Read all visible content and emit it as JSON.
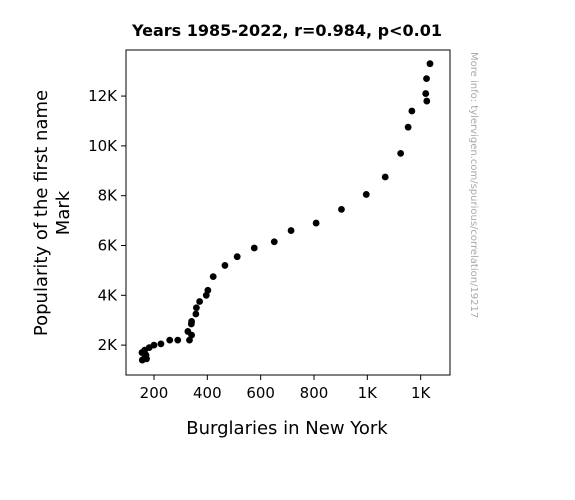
{
  "chart_data": {
    "type": "scatter",
    "title": "Years 1985-2022, r=0.984, p<0.01",
    "xlabel": "Burglaries in New York",
    "ylabel_lines": [
      "Popularity of the first name",
      "Mark"
    ],
    "watermark": "More info: tylervigen.com/spurious/correlation/19217",
    "xlim": [
      95,
      1310
    ],
    "ylim": [
      800,
      13850
    ],
    "x_ticks": [
      {
        "value": 200,
        "label": "200"
      },
      {
        "value": 400,
        "label": "400"
      },
      {
        "value": 600,
        "label": "600"
      },
      {
        "value": 800,
        "label": "800"
      },
      {
        "value": 1000,
        "label": "1K"
      },
      {
        "value": 1200,
        "label": "1K"
      }
    ],
    "y_ticks": [
      {
        "value": 2000,
        "label": "2K"
      },
      {
        "value": 4000,
        "label": "4K"
      },
      {
        "value": 6000,
        "label": "6K"
      },
      {
        "value": 8000,
        "label": "8K"
      },
      {
        "value": 10000,
        "label": "10K"
      },
      {
        "value": 12000,
        "label": "12K"
      }
    ],
    "marker_color": "#000000",
    "points": [
      {
        "x": 1235,
        "y": 13300
      },
      {
        "x": 1222,
        "y": 12700
      },
      {
        "x": 1219,
        "y": 12100
      },
      {
        "x": 1223,
        "y": 11800
      },
      {
        "x": 1167,
        "y": 11400
      },
      {
        "x": 1153,
        "y": 10750
      },
      {
        "x": 1125,
        "y": 9700
      },
      {
        "x": 1067,
        "y": 8750
      },
      {
        "x": 996,
        "y": 8050
      },
      {
        "x": 903,
        "y": 7450
      },
      {
        "x": 808,
        "y": 6900
      },
      {
        "x": 714,
        "y": 6600
      },
      {
        "x": 651,
        "y": 6150
      },
      {
        "x": 576,
        "y": 5900
      },
      {
        "x": 512,
        "y": 5550
      },
      {
        "x": 466,
        "y": 5200
      },
      {
        "x": 422,
        "y": 4750
      },
      {
        "x": 402,
        "y": 4200
      },
      {
        "x": 396,
        "y": 4000
      },
      {
        "x": 371,
        "y": 3750
      },
      {
        "x": 359,
        "y": 3500
      },
      {
        "x": 357,
        "y": 3250
      },
      {
        "x": 341,
        "y": 2950
      },
      {
        "x": 340,
        "y": 2850
      },
      {
        "x": 327,
        "y": 2550
      },
      {
        "x": 341,
        "y": 2400
      },
      {
        "x": 333,
        "y": 2200
      },
      {
        "x": 289,
        "y": 2200
      },
      {
        "x": 259,
        "y": 2200
      },
      {
        "x": 226,
        "y": 2050
      },
      {
        "x": 200,
        "y": 2000
      },
      {
        "x": 182,
        "y": 1900
      },
      {
        "x": 165,
        "y": 1800
      },
      {
        "x": 155,
        "y": 1700
      },
      {
        "x": 170,
        "y": 1600
      },
      {
        "x": 163,
        "y": 1450
      },
      {
        "x": 172,
        "y": 1450
      },
      {
        "x": 156,
        "y": 1400
      }
    ]
  }
}
